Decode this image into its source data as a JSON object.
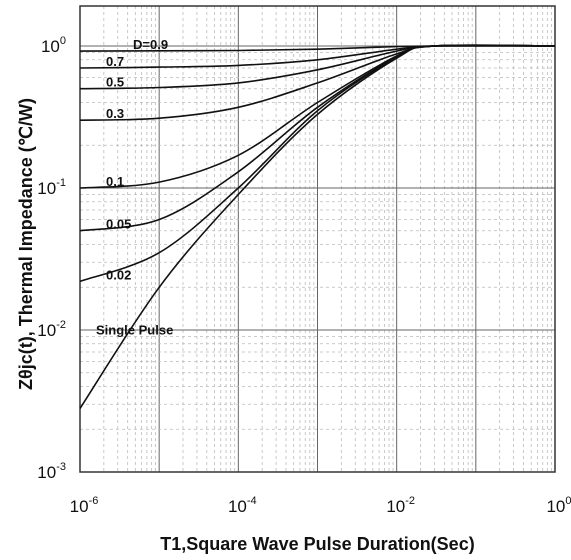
{
  "chart_data": {
    "type": "line",
    "xlabel": "T1,Square Wave Pulse Duration(Sec)",
    "ylabel": "Zθjc(t), Thermal Impedance (℃/W)",
    "xscale": "log",
    "yscale": "log",
    "xlim": [
      1e-06,
      1
    ],
    "ylim": [
      0.001,
      2
    ],
    "x_ticks": [
      {
        "base": "10",
        "exp": "-6"
      },
      {
        "base": "10",
        "exp": "-4"
      },
      {
        "base": "10",
        "exp": "-2"
      },
      {
        "base": "10",
        "exp": "0"
      }
    ],
    "y_ticks": [
      {
        "base": "10",
        "exp": "-3"
      },
      {
        "base": "10",
        "exp": "-2"
      },
      {
        "base": "10",
        "exp": "-1"
      },
      {
        "base": "10",
        "exp": "0"
      }
    ],
    "grid": true,
    "series": [
      {
        "name": "D=0.9",
        "x": [
          1e-06,
          1e-05,
          0.0001,
          0.001,
          0.01,
          0.03,
          1
        ],
        "y": [
          0.92,
          0.925,
          0.93,
          0.95,
          0.99,
          1.0,
          1.0
        ]
      },
      {
        "name": "0.7",
        "x": [
          1e-06,
          1e-05,
          0.0001,
          0.001,
          0.01,
          0.03,
          1
        ],
        "y": [
          0.7,
          0.71,
          0.73,
          0.8,
          0.95,
          1.0,
          1.0
        ]
      },
      {
        "name": "0.5",
        "x": [
          1e-06,
          1e-05,
          0.0001,
          0.001,
          0.01,
          0.03,
          1
        ],
        "y": [
          0.5,
          0.51,
          0.55,
          0.68,
          0.92,
          1.0,
          1.0
        ]
      },
      {
        "name": "0.3",
        "x": [
          1e-06,
          1e-05,
          0.0001,
          0.001,
          0.01,
          0.03,
          1
        ],
        "y": [
          0.3,
          0.31,
          0.37,
          0.55,
          0.88,
          1.0,
          1.0
        ]
      },
      {
        "name": "0.1",
        "x": [
          1e-06,
          1e-05,
          0.0001,
          0.001,
          0.01,
          0.03,
          1
        ],
        "y": [
          0.1,
          0.11,
          0.17,
          0.4,
          0.85,
          1.0,
          1.0
        ]
      },
      {
        "name": "0.05",
        "x": [
          1e-06,
          1e-05,
          0.0001,
          0.001,
          0.01,
          0.03,
          1
        ],
        "y": [
          0.05,
          0.06,
          0.13,
          0.37,
          0.84,
          1.0,
          1.0
        ]
      },
      {
        "name": "0.02",
        "x": [
          1e-06,
          1e-05,
          0.0001,
          0.001,
          0.01,
          0.03,
          1
        ],
        "y": [
          0.022,
          0.035,
          0.1,
          0.35,
          0.83,
          1.0,
          1.0
        ]
      },
      {
        "name": "Single Pulse",
        "x": [
          1e-06,
          1e-05,
          0.0001,
          0.001,
          0.01,
          0.03,
          1
        ],
        "y": [
          0.0028,
          0.02,
          0.09,
          0.33,
          0.82,
          1.0,
          1.0
        ]
      }
    ]
  }
}
